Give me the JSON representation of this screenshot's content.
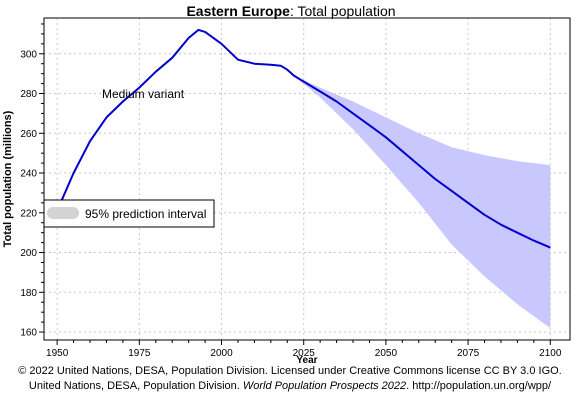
{
  "chart_data": {
    "type": "line",
    "title_region": "Eastern Europe",
    "title_rest": ": Total population",
    "xlabel": "Year",
    "ylabel": "Total population (millions)",
    "xlim": [
      1946,
      2106
    ],
    "ylim": [
      156,
      318
    ],
    "x_ticks": [
      1950,
      1975,
      2000,
      2025,
      2050,
      2075,
      2100
    ],
    "y_ticks": [
      160,
      180,
      200,
      220,
      240,
      260,
      280,
      300
    ],
    "grid": true,
    "line_color": "#0000cc",
    "band_color": "#c8c8ff",
    "annotation": "Medium variant",
    "legend": {
      "label": "95% prediction interval",
      "placement": "left"
    },
    "series": [
      {
        "name": "Medium variant",
        "x": [
          1950,
          1955,
          1960,
          1965,
          1970,
          1975,
          1980,
          1985,
          1990,
          1993,
          1995,
          2000,
          2005,
          2010,
          2015,
          2018,
          2020,
          2022,
          2025,
          2030,
          2035,
          2040,
          2045,
          2050,
          2055,
          2060,
          2065,
          2070,
          2075,
          2080,
          2085,
          2090,
          2095,
          2100
        ],
        "values": [
          221,
          240,
          256,
          268,
          276,
          283,
          291,
          298,
          308,
          312,
          311,
          305,
          297,
          295,
          294.5,
          294,
          292,
          289,
          286,
          281,
          276,
          270,
          264,
          258,
          251,
          244,
          237,
          231,
          225,
          219,
          214,
          210,
          206,
          202.5
        ]
      },
      {
        "name": "95% prediction interval",
        "x": [
          2022,
          2030,
          2040,
          2050,
          2060,
          2070,
          2080,
          2090,
          2100
        ],
        "upper": [
          289,
          283,
          276,
          268,
          260,
          253,
          249,
          246,
          244
        ],
        "lower": [
          289,
          278,
          262,
          244,
          225,
          204,
          188,
          174,
          162
        ]
      }
    ]
  },
  "footer": {
    "line1": "© 2022 United Nations, DESA, Population Division. Licensed under Creative Commons license CC BY 3.0 IGO.",
    "line2_prefix": "United Nations, DESA, Population Division. ",
    "line2_italic": "World Population Prospects 2022",
    "line2_suffix": ". http://population.un.org/wpp/"
  }
}
